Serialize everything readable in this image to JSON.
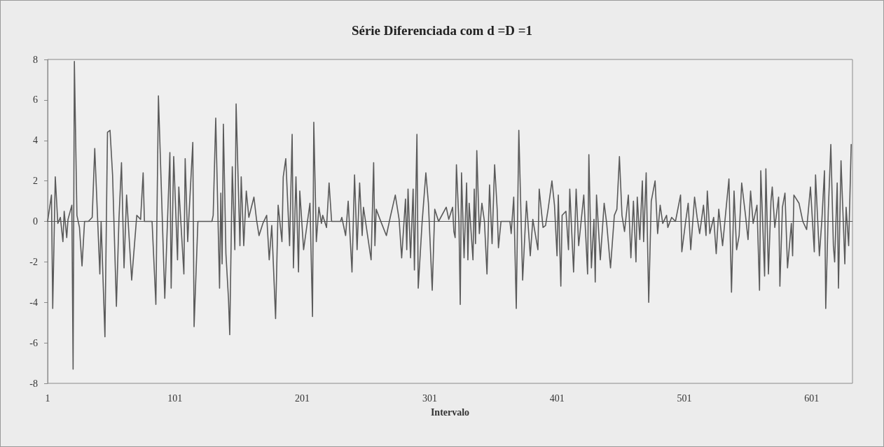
{
  "chart_data": {
    "type": "line",
    "title": "Série Diferenciada com d =D =1",
    "xlabel": "Intervalo",
    "xlim": [
      1,
      633
    ],
    "xticks": [
      1,
      101,
      201,
      301,
      401,
      501,
      601
    ],
    "ylim": [
      -8,
      8
    ],
    "yticks": [
      -8,
      -6,
      -4,
      -2,
      0,
      2,
      4,
      6,
      8
    ],
    "grid": false,
    "marker": "none",
    "line_style": "solid",
    "ref_lines": [
      {
        "axis": "y",
        "value": 0,
        "color": "#555555"
      }
    ],
    "series": [
      {
        "color": "#5a5a5a",
        "x": [
          1,
          4,
          5,
          7,
          9,
          11,
          13,
          14,
          16,
          17,
          20,
          21,
          22,
          24,
          26,
          28,
          30,
          33,
          36,
          38,
          42,
          43,
          46,
          48,
          50,
          52,
          55,
          57,
          59,
          61,
          63,
          67,
          71,
          74,
          76,
          77,
          83,
          86,
          88,
          90,
          93,
          97,
          98,
          100,
          103,
          104,
          108,
          109,
          111,
          112,
          115,
          116,
          119,
          130,
          131,
          133,
          136,
          137,
          138,
          139,
          141,
          143,
          144,
          146,
          148,
          149,
          152,
          153,
          155,
          157,
          159,
          163,
          165,
          167,
          170,
          173,
          175,
          177,
          180,
          182,
          185,
          186,
          188,
          191,
          193,
          194,
          196,
          198,
          199,
          202,
          207,
          209,
          210,
          212,
          214,
          216,
          217,
          220,
          222,
          224,
          231,
          232,
          235,
          237,
          240,
          242,
          244,
          246,
          248,
          249,
          255,
          257,
          258,
          259,
          262,
          267,
          270,
          274,
          277,
          279,
          282,
          283,
          284,
          286,
          288,
          289,
          291,
          292,
          295,
          298,
          300,
          303,
          305,
          308,
          314,
          316,
          319,
          320,
          321,
          322,
          324,
          325,
          326,
          328,
          330,
          331,
          332,
          335,
          336,
          337,
          338,
          340,
          342,
          344,
          346,
          348,
          350,
          352,
          354,
          355,
          357,
          364,
          365,
          367,
          369,
          371,
          374,
          377,
          380,
          382,
          386,
          387,
          390,
          392,
          394,
          397,
          399,
          401,
          402,
          404,
          405,
          408,
          410,
          411,
          414,
          416,
          418,
          422,
          425,
          426,
          428,
          430,
          431,
          432,
          435,
          438,
          440,
          443,
          446,
          448,
          450,
          452,
          454,
          457,
          459,
          461,
          463,
          464,
          466,
          468,
          469,
          471,
          473,
          475,
          478,
          480,
          482,
          484,
          487,
          488,
          491,
          494,
          498,
          499,
          502,
          504,
          506,
          509,
          511,
          513,
          516,
          518,
          519,
          521,
          524,
          526,
          528,
          531,
          534,
          536,
          538,
          540,
          542,
          544,
          546,
          549,
          551,
          553,
          555,
          558,
          560,
          561,
          564,
          565,
          567,
          569,
          570,
          572,
          575,
          576,
          578,
          580,
          582,
          585,
          586,
          587,
          591,
          594,
          597,
          600,
          603,
          604,
          607,
          609,
          611,
          612,
          614,
          616,
          618,
          619,
          621,
          622,
          624,
          627,
          628,
          630,
          632
        ],
        "values": [
          0,
          1.3,
          -4.3,
          2.2,
          -0.1,
          0.2,
          -1.0,
          0.5,
          -0.8,
          0.1,
          0.8,
          -7.3,
          7.9,
          0.3,
          -0.3,
          -2.2,
          0,
          0,
          0.2,
          3.6,
          -2.6,
          0,
          -5.7,
          4.4,
          4.5,
          2.3,
          -4.2,
          0.1,
          2.9,
          -2.3,
          1.3,
          -2.9,
          0.3,
          0.1,
          2.4,
          0,
          0,
          -4.1,
          6.2,
          2.2,
          -3.8,
          3.4,
          -3.3,
          3.2,
          -1.9,
          1.7,
          -2.6,
          3.1,
          -1.0,
          0.3,
          3.9,
          -5.2,
          0,
          0,
          0.3,
          5.1,
          -3.3,
          1.4,
          -2.1,
          4.8,
          -1.6,
          -3.8,
          -5.6,
          2.7,
          -1.4,
          5.8,
          -1.2,
          2.2,
          -1.2,
          1.5,
          0.2,
          1.2,
          0.1,
          -0.7,
          -0.1,
          0.3,
          -1.9,
          -0.2,
          -4.8,
          0.8,
          -1.0,
          2.2,
          3.1,
          -1.2,
          4.3,
          -2.3,
          2.2,
          -2.5,
          1.5,
          -1.4,
          0.9,
          -4.7,
          4.9,
          -1.0,
          0.7,
          -0.1,
          0.3,
          -0.3,
          1.9,
          0,
          0,
          0.2,
          -0.7,
          1.0,
          -2.5,
          2.3,
          -1.4,
          1.9,
          -0.7,
          0.7,
          -1.9,
          2.9,
          -1.2,
          0.6,
          0.1,
          -0.7,
          0.2,
          1.3,
          0.1,
          -1.8,
          1.1,
          -1.4,
          1.6,
          -1.8,
          1.6,
          -2.4,
          4.3,
          -3.3,
          -0.1,
          2.4,
          0.9,
          -3.4,
          0.6,
          0,
          0.7,
          0.1,
          0.7,
          -0.5,
          -0.8,
          2.8,
          -0.1,
          -4.1,
          2.4,
          -1.8,
          1.9,
          -1.9,
          0.9,
          -1.9,
          1.6,
          -1.1,
          3.5,
          -0.6,
          0.9,
          0,
          -2.6,
          1.8,
          -1.1,
          2.8,
          0.6,
          -1.3,
          0,
          0,
          -0.6,
          1.2,
          -4.3,
          4.5,
          -2.9,
          1.0,
          -1.7,
          0.1,
          -1.4,
          1.6,
          -0.3,
          -0.2,
          0.6,
          2.0,
          0.8,
          -1.7,
          1.3,
          -3.2,
          0.3,
          0.5,
          -1.4,
          1.6,
          -2.5,
          1.6,
          -1.2,
          1.3,
          -2.6,
          3.3,
          -2.3,
          0.1,
          -3.0,
          1.3,
          -1.9,
          0.9,
          -0.1,
          -2.3,
          0.3,
          0.6,
          3.2,
          0.3,
          -0.5,
          1.3,
          -1.8,
          1.0,
          -2.0,
          1.2,
          -0.9,
          2.0,
          -1.0,
          2.4,
          -4.0,
          1.0,
          2.0,
          -0.6,
          0.8,
          -0.1,
          0.3,
          -0.3,
          0.2,
          0,
          1.3,
          -1.5,
          0,
          0.9,
          -1.4,
          1.2,
          0.2,
          -0.6,
          0.8,
          -0.7,
          1.5,
          -0.6,
          0.2,
          -1.6,
          0.6,
          -1.2,
          0.8,
          2.1,
          -3.5,
          1.5,
          -1.4,
          -0.7,
          1.9,
          0.3,
          -0.9,
          1.5,
          -0.1,
          0.8,
          -3.4,
          2.5,
          -2.7,
          2.6,
          -2.6,
          1.0,
          1.7,
          -0.3,
          1.2,
          -3.2,
          0.7,
          1.4,
          -2.3,
          -0.1,
          -1.7,
          1.3,
          0.9,
          0,
          -0.4,
          1.7,
          -1.5,
          2.3,
          -1.7,
          0.1,
          2.5,
          -4.3,
          0.5,
          3.8,
          -1.2,
          -2.0,
          1.9,
          -3.3,
          3.0,
          -2.1,
          0.7,
          -1.2,
          3.8
        ]
      }
    ]
  }
}
